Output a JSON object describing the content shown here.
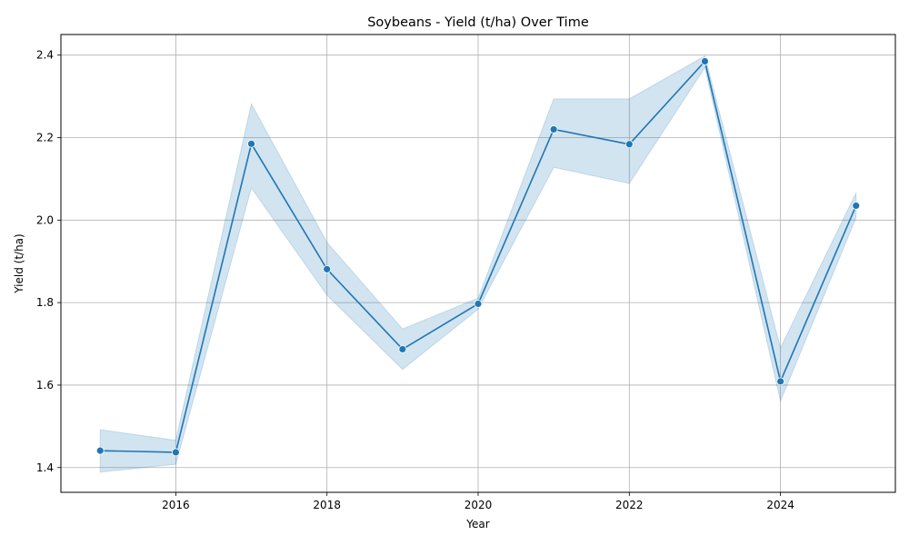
{
  "chart_data": {
    "type": "line",
    "title": "Soybeans - Yield (t/ha) Over Time",
    "xlabel": "Year",
    "ylabel": "Yield (t/ha)",
    "xlim": [
      2014.48,
      2025.52
    ],
    "ylim": [
      1.34,
      2.45
    ],
    "x_ticks": [
      2016,
      2018,
      2020,
      2022,
      2024
    ],
    "y_ticks": [
      1.4,
      1.6,
      1.8,
      2.0,
      2.2,
      2.4
    ],
    "grid": true,
    "series": [
      {
        "color": "#1f77b4",
        "band_color": "#1f77b4",
        "points": [
          {
            "x": 2015,
            "y": 1.441,
            "lo": 1.389,
            "hi": 1.492
          },
          {
            "x": 2016,
            "y": 1.437,
            "lo": 1.408,
            "hi": 1.466
          },
          {
            "x": 2017,
            "y": 2.185,
            "lo": 2.078,
            "hi": 2.282
          },
          {
            "x": 2018,
            "y": 1.881,
            "lo": 1.818,
            "hi": 1.946
          },
          {
            "x": 2019,
            "y": 1.687,
            "lo": 1.638,
            "hi": 1.736
          },
          {
            "x": 2020,
            "y": 1.797,
            "lo": 1.784,
            "hi": 1.811
          },
          {
            "x": 2021,
            "y": 2.22,
            "lo": 2.128,
            "hi": 2.294
          },
          {
            "x": 2022,
            "y": 2.184,
            "lo": 2.089,
            "hi": 2.294
          },
          {
            "x": 2023,
            "y": 2.385,
            "lo": 2.37,
            "hi": 2.398
          },
          {
            "x": 2024,
            "y": 1.609,
            "lo": 1.561,
            "hi": 1.69
          },
          {
            "x": 2025,
            "y": 2.035,
            "lo": 2.006,
            "hi": 2.066
          }
        ]
      }
    ]
  }
}
